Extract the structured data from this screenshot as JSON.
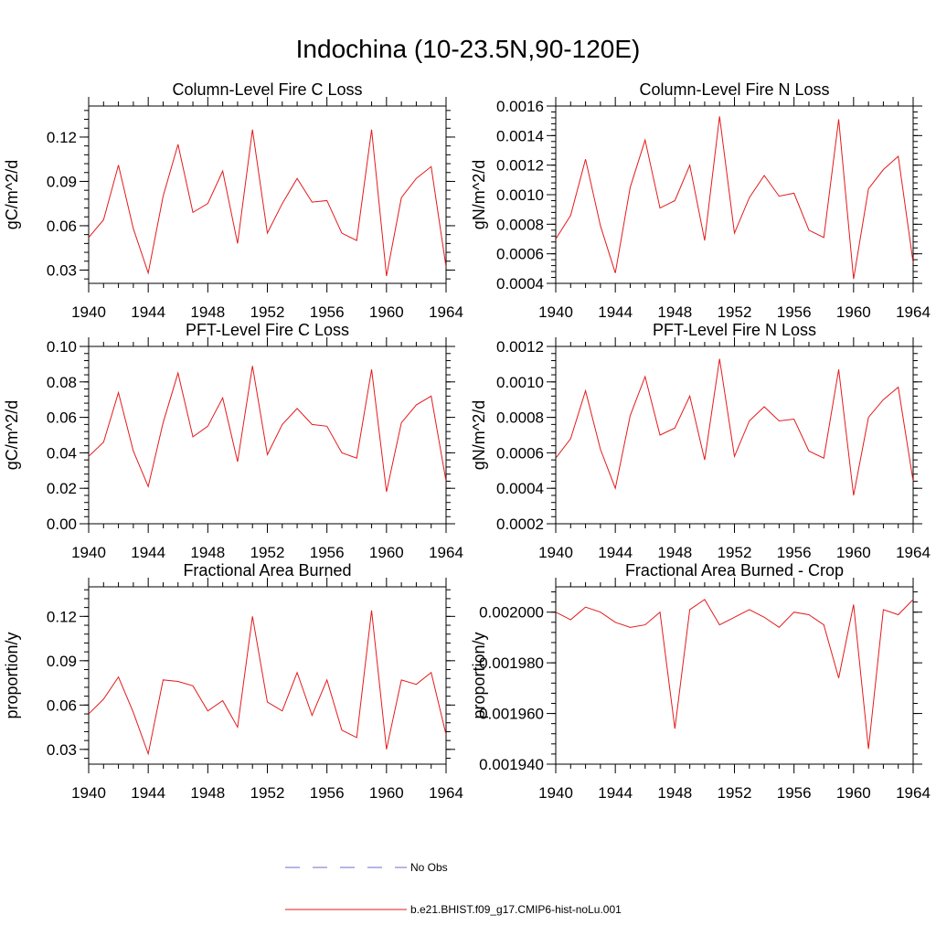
{
  "page": {
    "title": "Indochina (10-23.5N,90-120E)"
  },
  "legend": {
    "items": [
      {
        "label": "No Obs",
        "color": "#6d6dc8",
        "style": "dashed"
      },
      {
        "label": "b.e21.BHIST.f09_g17.CMIP6-hist-noLu.001",
        "color": "#e41a1c",
        "style": "solid"
      }
    ]
  },
  "chart_data": [
    {
      "type": "line",
      "title": "Column-Level Fire C Loss",
      "ylabel": "gC/m^2/d",
      "x": [
        1940,
        1941,
        1942,
        1943,
        1944,
        1945,
        1946,
        1947,
        1948,
        1949,
        1950,
        1951,
        1952,
        1953,
        1954,
        1955,
        1956,
        1957,
        1958,
        1959,
        1960,
        1961,
        1962,
        1963,
        1964
      ],
      "xlim": [
        1940,
        1964
      ],
      "xticks": [
        "1940",
        "1944",
        "1948",
        "1952",
        "1956",
        "1960",
        "1964"
      ],
      "ylim": [
        0.021,
        0.141
      ],
      "yticks": [
        "0.03",
        "0.06",
        "0.09",
        "0.12"
      ],
      "ytick_values": [
        0.03,
        0.06,
        0.09,
        0.12
      ],
      "series": [
        {
          "values": [
            0.052,
            0.064,
            0.101,
            0.058,
            0.028,
            0.08,
            0.115,
            0.069,
            0.075,
            0.097,
            0.048,
            0.125,
            0.055,
            0.075,
            0.092,
            0.076,
            0.077,
            0.055,
            0.05,
            0.125,
            0.026,
            0.079,
            0.092,
            0.1,
            0.032
          ]
        }
      ]
    },
    {
      "type": "line",
      "title": "Column-Level Fire N Loss",
      "ylabel": "gN/m^2/d",
      "x": [
        1940,
        1941,
        1942,
        1943,
        1944,
        1945,
        1946,
        1947,
        1948,
        1949,
        1950,
        1951,
        1952,
        1953,
        1954,
        1955,
        1956,
        1957,
        1958,
        1959,
        1960,
        1961,
        1962,
        1963,
        1964
      ],
      "xlim": [
        1940,
        1964
      ],
      "xticks": [
        "1940",
        "1944",
        "1948",
        "1952",
        "1956",
        "1960",
        "1964"
      ],
      "ylim": [
        0.0004,
        0.0016
      ],
      "yticks": [
        "0.0004",
        "0.0006",
        "0.0008",
        "0.0010",
        "0.0012",
        "0.0014",
        "0.0016"
      ],
      "ytick_values": [
        0.0004,
        0.0006,
        0.0008,
        0.001,
        0.0012,
        0.0014,
        0.0016
      ],
      "series": [
        {
          "values": [
            0.0007,
            0.00086,
            0.00124,
            0.00079,
            0.00047,
            0.00105,
            0.00137,
            0.00091,
            0.00096,
            0.0012,
            0.00069,
            0.00153,
            0.00074,
            0.00098,
            0.00113,
            0.00099,
            0.00101,
            0.00076,
            0.00071,
            0.00151,
            0.00043,
            0.00104,
            0.00117,
            0.00126,
            0.00054
          ]
        }
      ]
    },
    {
      "type": "line",
      "title": "PFT-Level Fire C Loss",
      "ylabel": "gC/m^2/d",
      "x": [
        1940,
        1941,
        1942,
        1943,
        1944,
        1945,
        1946,
        1947,
        1948,
        1949,
        1950,
        1951,
        1952,
        1953,
        1954,
        1955,
        1956,
        1957,
        1958,
        1959,
        1960,
        1961,
        1962,
        1963,
        1964
      ],
      "xlim": [
        1940,
        1964
      ],
      "xticks": [
        "1940",
        "1944",
        "1948",
        "1952",
        "1956",
        "1960",
        "1964"
      ],
      "ylim": [
        0.0,
        0.1
      ],
      "yticks": [
        "0.00",
        "0.02",
        "0.04",
        "0.06",
        "0.08",
        "0.10"
      ],
      "ytick_values": [
        0.0,
        0.02,
        0.04,
        0.06,
        0.08,
        0.1
      ],
      "series": [
        {
          "values": [
            0.038,
            0.046,
            0.074,
            0.041,
            0.021,
            0.057,
            0.085,
            0.049,
            0.055,
            0.071,
            0.035,
            0.089,
            0.039,
            0.056,
            0.065,
            0.056,
            0.055,
            0.04,
            0.037,
            0.087,
            0.018,
            0.057,
            0.067,
            0.072,
            0.024
          ]
        }
      ]
    },
    {
      "type": "line",
      "title": "PFT-Level Fire N Loss",
      "ylabel": "gN/m^2/d",
      "x": [
        1940,
        1941,
        1942,
        1943,
        1944,
        1945,
        1946,
        1947,
        1948,
        1949,
        1950,
        1951,
        1952,
        1953,
        1954,
        1955,
        1956,
        1957,
        1958,
        1959,
        1960,
        1961,
        1962,
        1963,
        1964
      ],
      "xlim": [
        1940,
        1964
      ],
      "xticks": [
        "1940",
        "1944",
        "1948",
        "1952",
        "1956",
        "1960",
        "1964"
      ],
      "ylim": [
        0.0002,
        0.0012
      ],
      "yticks": [
        "0.0002",
        "0.0004",
        "0.0006",
        "0.0008",
        "0.0010",
        "0.0012"
      ],
      "ytick_values": [
        0.0002,
        0.0004,
        0.0006,
        0.0008,
        0.001,
        0.0012
      ],
      "series": [
        {
          "values": [
            0.00057,
            0.00068,
            0.00095,
            0.00062,
            0.0004,
            0.00081,
            0.00103,
            0.0007,
            0.00074,
            0.00092,
            0.00056,
            0.00113,
            0.00058,
            0.00078,
            0.00086,
            0.00078,
            0.00079,
            0.00061,
            0.00057,
            0.00107,
            0.00036,
            0.0008,
            0.0009,
            0.00097,
            0.00044
          ]
        }
      ]
    },
    {
      "type": "line",
      "title": "Fractional Area Burned",
      "ylabel": "proportion/y",
      "x": [
        1940,
        1941,
        1942,
        1943,
        1944,
        1945,
        1946,
        1947,
        1948,
        1949,
        1950,
        1951,
        1952,
        1953,
        1954,
        1955,
        1956,
        1957,
        1958,
        1959,
        1960,
        1961,
        1962,
        1963,
        1964
      ],
      "xlim": [
        1940,
        1964
      ],
      "xticks": [
        "1940",
        "1944",
        "1948",
        "1952",
        "1956",
        "1960",
        "1964"
      ],
      "ylim": [
        0.02,
        0.14
      ],
      "yticks": [
        "0.03",
        "0.06",
        "0.09",
        "0.12"
      ],
      "ytick_values": [
        0.03,
        0.06,
        0.09,
        0.12
      ],
      "series": [
        {
          "values": [
            0.054,
            0.064,
            0.079,
            0.055,
            0.027,
            0.077,
            0.076,
            0.073,
            0.056,
            0.063,
            0.045,
            0.12,
            0.062,
            0.056,
            0.082,
            0.053,
            0.077,
            0.043,
            0.038,
            0.124,
            0.03,
            0.077,
            0.074,
            0.082,
            0.04
          ]
        }
      ]
    },
    {
      "type": "line",
      "title": "Fractional Area Burned - Crop",
      "ylabel": "proportion/y",
      "x": [
        1940,
        1941,
        1942,
        1943,
        1944,
        1945,
        1946,
        1947,
        1948,
        1949,
        1950,
        1951,
        1952,
        1953,
        1954,
        1955,
        1956,
        1957,
        1958,
        1959,
        1960,
        1961,
        1962,
        1963,
        1964
      ],
      "xlim": [
        1940,
        1964
      ],
      "xticks": [
        "1940",
        "1944",
        "1948",
        "1952",
        "1956",
        "1960",
        "1964"
      ],
      "ylim": [
        0.00194,
        0.00201
      ],
      "yticks": [
        "0.001940",
        "0.001960",
        "0.001980",
        "0.002000"
      ],
      "ytick_values": [
        0.00194,
        0.00196,
        0.00198,
        0.002
      ],
      "series": [
        {
          "values": [
            0.002,
            0.001997,
            0.002002,
            0.002,
            0.001996,
            0.001994,
            0.001995,
            0.002,
            0.001954,
            0.002001,
            0.002005,
            0.001995,
            0.001998,
            0.002001,
            0.001998,
            0.001994,
            0.002,
            0.001999,
            0.001995,
            0.001974,
            0.002003,
            0.001946,
            0.002001,
            0.001999,
            0.002005
          ]
        }
      ]
    }
  ]
}
